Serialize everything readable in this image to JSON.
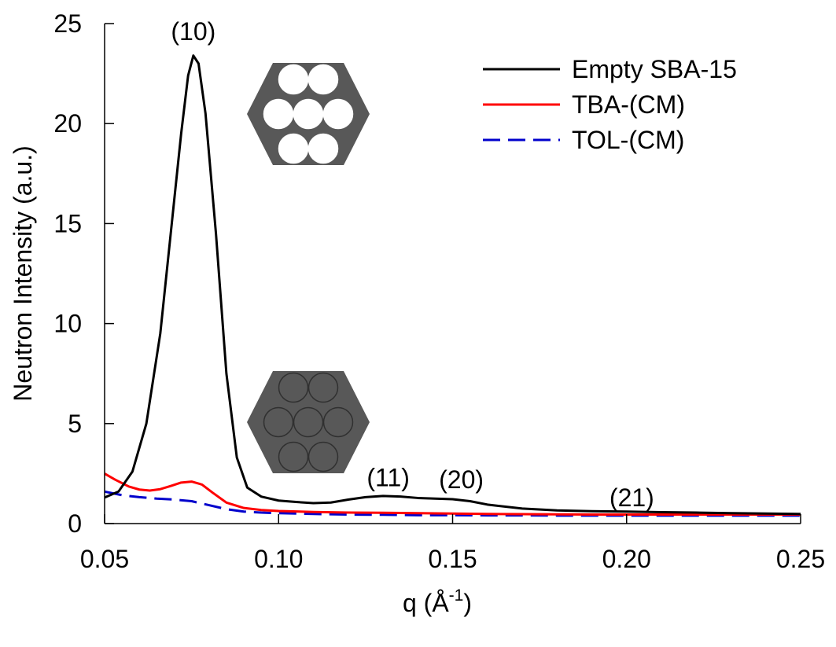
{
  "chart_data": {
    "type": "line",
    "title": "",
    "xlabel": "q (Å",
    "xlabel_sup": "-1",
    "xlabel_close": ")",
    "ylabel": "Neutron Intensity (a.u.)",
    "xlim": [
      0.05,
      0.25
    ],
    "ylim": [
      0,
      25
    ],
    "xticks": [
      0.05,
      0.1,
      0.15,
      0.2,
      0.25
    ],
    "xtick_labels": [
      "0.05",
      "0.10",
      "0.15",
      "0.20",
      "0.25"
    ],
    "yticks": [
      0,
      5,
      10,
      15,
      20,
      25
    ],
    "ytick_labels": [
      "0",
      "5",
      "10",
      "15",
      "20",
      "25"
    ],
    "grid": false,
    "legend_position": "top-right",
    "series": [
      {
        "name": "Empty SBA-15",
        "color": "#000000",
        "dash": "solid",
        "points": [
          [
            0.05,
            1.3
          ],
          [
            0.054,
            1.6
          ],
          [
            0.058,
            2.6
          ],
          [
            0.062,
            5.0
          ],
          [
            0.066,
            9.5
          ],
          [
            0.069,
            14.5
          ],
          [
            0.072,
            19.5
          ],
          [
            0.074,
            22.4
          ],
          [
            0.0755,
            23.4
          ],
          [
            0.077,
            23.0
          ],
          [
            0.079,
            20.5
          ],
          [
            0.082,
            14.5
          ],
          [
            0.085,
            7.5
          ],
          [
            0.088,
            3.3
          ],
          [
            0.091,
            1.8
          ],
          [
            0.095,
            1.35
          ],
          [
            0.1,
            1.15
          ],
          [
            0.105,
            1.08
          ],
          [
            0.11,
            1.02
          ],
          [
            0.115,
            1.05
          ],
          [
            0.12,
            1.2
          ],
          [
            0.125,
            1.32
          ],
          [
            0.13,
            1.38
          ],
          [
            0.135,
            1.35
          ],
          [
            0.14,
            1.28
          ],
          [
            0.145,
            1.25
          ],
          [
            0.15,
            1.22
          ],
          [
            0.155,
            1.12
          ],
          [
            0.16,
            0.95
          ],
          [
            0.17,
            0.75
          ],
          [
            0.18,
            0.66
          ],
          [
            0.19,
            0.62
          ],
          [
            0.2,
            0.6
          ],
          [
            0.21,
            0.57
          ],
          [
            0.22,
            0.55
          ],
          [
            0.23,
            0.52
          ],
          [
            0.24,
            0.5
          ],
          [
            0.25,
            0.48
          ]
        ]
      },
      {
        "name": "TBA-(CM)",
        "color": "#ff0000",
        "dash": "solid",
        "points": [
          [
            0.05,
            2.5
          ],
          [
            0.053,
            2.2
          ],
          [
            0.057,
            1.85
          ],
          [
            0.06,
            1.7
          ],
          [
            0.063,
            1.65
          ],
          [
            0.066,
            1.72
          ],
          [
            0.069,
            1.88
          ],
          [
            0.072,
            2.05
          ],
          [
            0.075,
            2.1
          ],
          [
            0.078,
            1.95
          ],
          [
            0.081,
            1.55
          ],
          [
            0.085,
            1.05
          ],
          [
            0.09,
            0.78
          ],
          [
            0.095,
            0.68
          ],
          [
            0.1,
            0.63
          ],
          [
            0.11,
            0.58
          ],
          [
            0.12,
            0.55
          ],
          [
            0.13,
            0.54
          ],
          [
            0.14,
            0.52
          ],
          [
            0.15,
            0.5
          ],
          [
            0.16,
            0.48
          ],
          [
            0.17,
            0.47
          ],
          [
            0.18,
            0.46
          ],
          [
            0.19,
            0.45
          ],
          [
            0.2,
            0.45
          ],
          [
            0.21,
            0.45
          ],
          [
            0.22,
            0.45
          ],
          [
            0.23,
            0.45
          ],
          [
            0.24,
            0.45
          ],
          [
            0.25,
            0.45
          ]
        ]
      },
      {
        "name": "TOL-(CM)",
        "color": "#0000cc",
        "dash": "dashed",
        "points": [
          [
            0.05,
            1.6
          ],
          [
            0.055,
            1.42
          ],
          [
            0.06,
            1.32
          ],
          [
            0.065,
            1.25
          ],
          [
            0.07,
            1.2
          ],
          [
            0.075,
            1.12
          ],
          [
            0.08,
            0.92
          ],
          [
            0.085,
            0.72
          ],
          [
            0.09,
            0.6
          ],
          [
            0.095,
            0.55
          ],
          [
            0.1,
            0.52
          ],
          [
            0.11,
            0.48
          ],
          [
            0.12,
            0.45
          ],
          [
            0.13,
            0.44
          ],
          [
            0.14,
            0.42
          ],
          [
            0.15,
            0.42
          ],
          [
            0.16,
            0.41
          ],
          [
            0.17,
            0.41
          ],
          [
            0.18,
            0.4
          ],
          [
            0.19,
            0.4
          ],
          [
            0.2,
            0.4
          ],
          [
            0.21,
            0.4
          ],
          [
            0.22,
            0.4
          ],
          [
            0.23,
            0.4
          ],
          [
            0.24,
            0.4
          ],
          [
            0.25,
            0.4
          ]
        ]
      }
    ],
    "annotations": [
      {
        "text": "(10)",
        "x": 0.0755,
        "y": 24.6
      },
      {
        "text": "(11)",
        "x": 0.1315,
        "y": 2.3
      },
      {
        "text": "(20)",
        "x": 0.1525,
        "y": 2.2
      },
      {
        "text": "(21)",
        "x": 0.2015,
        "y": 1.3
      }
    ],
    "insets": [
      {
        "name": "empty-pores-hexagon",
        "hexagon_color": "#585858",
        "pore_color": "#ffffff",
        "pore_stroke": "#ffffff"
      },
      {
        "name": "filled-pores-hexagon",
        "hexagon_color": "#585858",
        "pore_color": "#585858",
        "pore_stroke": "#303030"
      }
    ]
  }
}
